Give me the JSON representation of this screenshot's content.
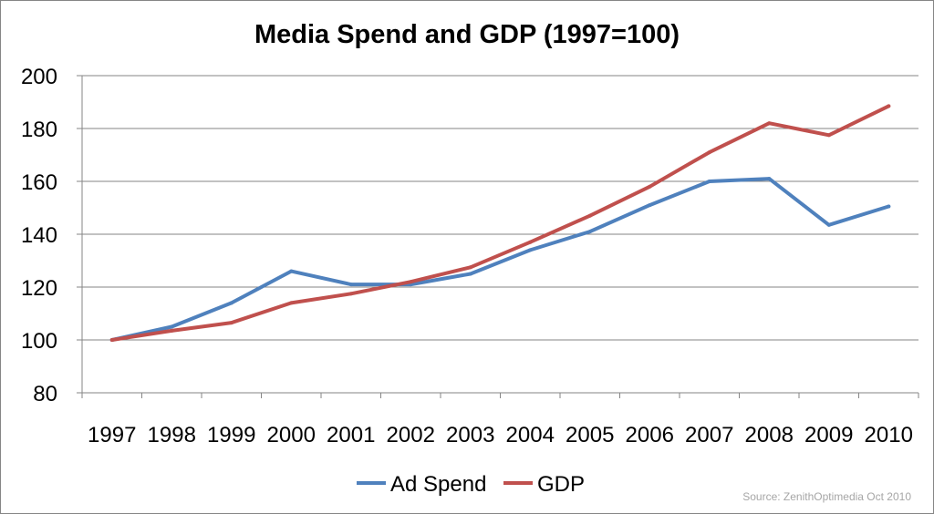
{
  "chart_data": {
    "type": "line",
    "title": "Media Spend and GDP (1997=100)",
    "categories": [
      "1997",
      "1998",
      "1999",
      "2000",
      "2001",
      "2002",
      "2003",
      "2004",
      "2005",
      "2006",
      "2007",
      "2008",
      "2009",
      "2010"
    ],
    "series": [
      {
        "name": "Ad Spend",
        "color": "#4f81bd",
        "values": [
          100,
          105,
          114,
          126,
          121,
          121,
          125,
          134,
          141,
          151,
          160,
          161,
          143.5,
          150.5
        ]
      },
      {
        "name": "GDP",
        "color": "#c0504d",
        "values": [
          100,
          103.5,
          106.5,
          114,
          117.5,
          122,
          127.5,
          137,
          147,
          158,
          171,
          182,
          177.5,
          188.5
        ]
      }
    ],
    "ylim": [
      80,
      200
    ],
    "yticks": [
      "80",
      "100",
      "120",
      "140",
      "160",
      "180",
      "200"
    ],
    "grid": true,
    "legend": "bottom",
    "xlabel": "",
    "ylabel": "",
    "source": "Source: ZenithOptimedia Oct 2010"
  }
}
